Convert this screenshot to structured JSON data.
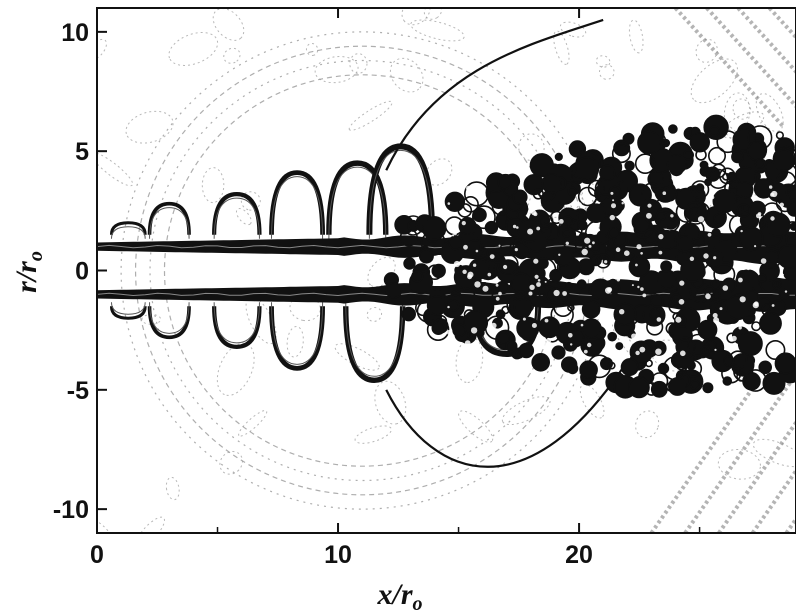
{
  "chart_data": {
    "type": "heatmap",
    "description_visible": "contour field",
    "xlabel": "x/r",
    "xlabel_sub": "o",
    "ylabel": "r/r",
    "ylabel_sub": "o",
    "xlim": [
      0,
      29
    ],
    "ylim": [
      -11,
      11
    ],
    "x_ticks": [
      0,
      10,
      20
    ],
    "x_tick_labels": [
      "0",
      "10",
      "20"
    ],
    "y_ticks": [
      -10,
      -5,
      0,
      5,
      10
    ],
    "y_tick_labels": [
      "-10",
      "-5",
      "0",
      "5",
      "10"
    ],
    "jet_shear_layers": [
      {
        "r": 1.0,
        "x_start": 0,
        "x_end": 29
      },
      {
        "r": -1.0,
        "x_start": 0,
        "x_end": 29
      }
    ],
    "vortex_roll_ups_upper": [
      {
        "x": 1.3,
        "r": 2.0
      },
      {
        "x": 3.0,
        "r": 2.8
      },
      {
        "x": 5.8,
        "r": 3.2
      },
      {
        "x": 8.3,
        "r": 4.1
      },
      {
        "x": 10.8,
        "r": 4.5
      },
      {
        "x": 12.6,
        "r": 5.2
      }
    ],
    "vortex_roll_ups_lower": [
      {
        "x": 1.3,
        "r": -2.0
      },
      {
        "x": 3.0,
        "r": -2.8
      },
      {
        "x": 5.8,
        "r": -3.2
      },
      {
        "x": 8.3,
        "r": -4.1
      },
      {
        "x": 11.5,
        "r": -4.6
      },
      {
        "x": 17.0,
        "r": -3.5
      }
    ],
    "turbulent_region": {
      "x_start": 12,
      "x_end": 29,
      "r_min": -5,
      "r_max": 6
    },
    "acoustic_wave_radius": 10,
    "acoustic_wave_center": [
      11,
      0
    ],
    "colors": {
      "contour": "#111111",
      "background": "#ffffff",
      "faint": "#9a9a9a"
    }
  }
}
